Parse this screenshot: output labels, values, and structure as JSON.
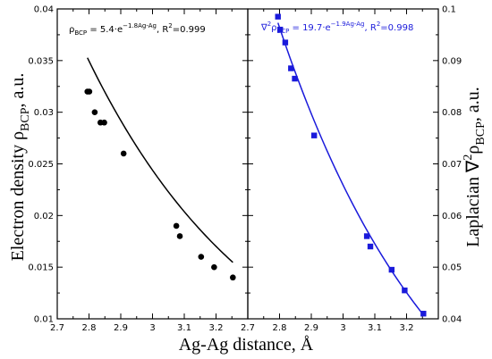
{
  "chart_data": [
    {
      "type": "scatter",
      "panel": "left",
      "xlabel": "Ag-Ag distance, Å",
      "ylabel": "Electron density ρ",
      "ylabel_sub": "BCP",
      "ylabel_tail": ", a.u.",
      "xlim": [
        2.7,
        3.3
      ],
      "ylim": [
        0.01,
        0.04
      ],
      "x_ticks": [
        "2.7",
        "2.8",
        "2.9",
        "3",
        "3.1",
        "3.2"
      ],
      "y_ticks": [
        "0.01",
        "0.015",
        "0.02",
        "0.025",
        "0.03",
        "0.035",
        "0.04"
      ],
      "y_tick_values": [
        0.01,
        0.015,
        0.02,
        0.025,
        0.03,
        0.035,
        0.04
      ],
      "y_axis_side": "left",
      "color": "#000000",
      "marker": "circle",
      "fit": {
        "a": 5.4,
        "b": 1.8
      },
      "annotation": {
        "p1": "ρ",
        "p1sub": "BCP",
        "p2": " = 5.4·e",
        "p2sup": "−1.8Ag-Ag",
        "p3": ", R",
        "p3sup": "2",
        "p4": "=0.999"
      },
      "x": [
        2.795,
        2.801,
        2.818,
        2.836,
        2.848,
        2.909,
        3.075,
        3.086,
        3.153,
        3.194,
        3.253
      ],
      "y": [
        0.032,
        0.032,
        0.03,
        0.029,
        0.029,
        0.026,
        0.019,
        0.018,
        0.016,
        0.015,
        0.014
      ]
    },
    {
      "type": "scatter",
      "panel": "right",
      "xlabel": "Ag-Ag distance, Å",
      "ylabel": "Laplacian ∇",
      "ylabel_sup": "2",
      "ylabel_rho": "ρ",
      "ylabel_sub": "BCP",
      "ylabel_tail": ", a.u.",
      "xlim": [
        2.7,
        3.3
      ],
      "ylim": [
        0.04,
        0.1
      ],
      "x_ticks": [
        "2.7",
        "2.8",
        "2.9",
        "3",
        "3.1",
        "3.2"
      ],
      "y_ticks": [
        "0.04",
        "0.05",
        "0.06",
        "0.07",
        "0.08",
        "0.09",
        "0.1"
      ],
      "y_tick_values": [
        0.04,
        0.05,
        0.06,
        0.07,
        0.08,
        0.09,
        0.1
      ],
      "y_axis_side": "right",
      "color": "#1a1adb",
      "marker": "square",
      "fit": {
        "a": 19.7,
        "b": 1.9
      },
      "annotation": {
        "p0": "∇",
        "p0sup": "2",
        "p1": "ρ",
        "p1sub": "BCP",
        "p2": " = 19.7·e",
        "p2sup": "−1.9Ag-Ag",
        "p3": ", R",
        "p3sup": "2",
        "p4": "=0.998"
      },
      "x": [
        2.795,
        2.802,
        2.818,
        2.836,
        2.848,
        2.909,
        3.075,
        3.086,
        3.153,
        3.194,
        3.253
      ],
      "y": [
        0.0985,
        0.096,
        0.0935,
        0.0885,
        0.0865,
        0.0755,
        0.056,
        0.054,
        0.0495,
        0.0455,
        0.041
      ]
    }
  ]
}
